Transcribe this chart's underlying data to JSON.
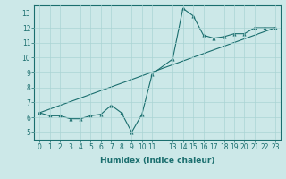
{
  "xlabel": "Humidex (Indice chaleur)",
  "bg_color": "#cce8e8",
  "line_color": "#1a6e6e",
  "grid_color": "#aad4d4",
  "xlim": [
    -0.5,
    23.5
  ],
  "ylim": [
    4.5,
    13.5
  ],
  "xticks": [
    0,
    1,
    2,
    3,
    4,
    5,
    6,
    7,
    8,
    9,
    10,
    11,
    13,
    14,
    15,
    16,
    17,
    18,
    19,
    20,
    21,
    22,
    23
  ],
  "yticks": [
    5,
    6,
    7,
    8,
    9,
    10,
    11,
    12,
    13
  ],
  "curve_x": [
    0,
    1,
    2,
    3,
    4,
    5,
    6,
    7,
    8,
    9,
    10,
    11,
    13,
    14,
    15,
    16,
    17,
    18,
    19,
    20,
    21,
    22,
    23
  ],
  "curve_y": [
    6.3,
    6.1,
    6.1,
    5.9,
    5.9,
    6.1,
    6.2,
    6.8,
    6.3,
    5.0,
    6.2,
    8.9,
    9.9,
    13.3,
    12.8,
    11.5,
    11.3,
    11.4,
    11.6,
    11.6,
    12.0,
    12.0,
    12.0
  ],
  "trend_x": [
    0,
    23
  ],
  "trend_y": [
    6.3,
    12.0
  ],
  "tick_fontsize": 5.5,
  "xlabel_fontsize": 6.5
}
